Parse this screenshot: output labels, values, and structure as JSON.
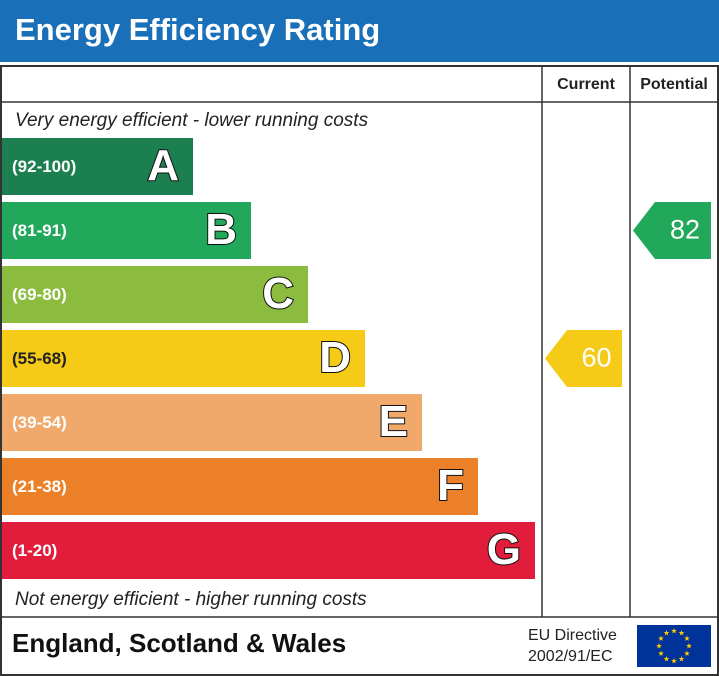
{
  "header": {
    "title": "Energy Efficiency Rating"
  },
  "columns": [
    "Current",
    "Potential"
  ],
  "top_note": "Very energy efficient - lower running costs",
  "bands": [
    {
      "range": "(92-100)",
      "letter": "A",
      "color": "#1b7f4f"
    },
    {
      "range": "(81-91)",
      "letter": "B",
      "color": "#22a85a"
    },
    {
      "range": "(69-80)",
      "letter": "C",
      "color": "#8cbc3f"
    },
    {
      "range": "(55-68)",
      "letter": "D",
      "color": "#f5cb17"
    },
    {
      "range": "(39-54)",
      "letter": "E",
      "color": "#f0a96a"
    },
    {
      "range": "(21-38)",
      "letter": "F",
      "color": "#ec8029"
    },
    {
      "range": "(1-20)",
      "letter": "G",
      "color": "#e21d3c"
    }
  ],
  "bottom_note": "Not energy efficient - higher running costs",
  "ratings": {
    "current": 60,
    "potential": 82
  },
  "footer": {
    "region": "England, Scotland & Wales",
    "directive": [
      "EU Directive",
      "2002/91/EC"
    ]
  }
}
